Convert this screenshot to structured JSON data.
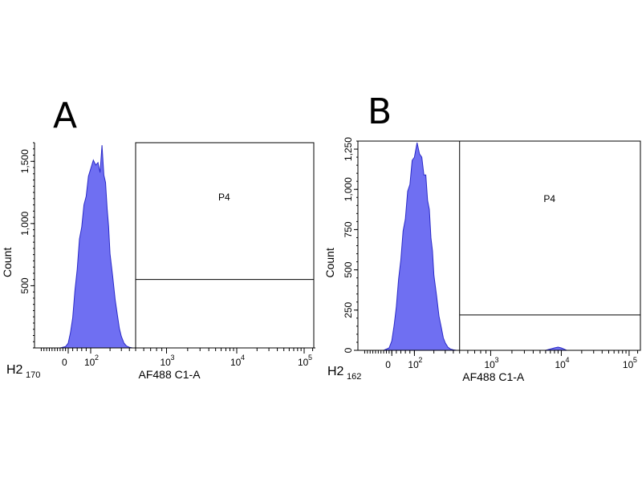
{
  "chart_data": [
    {
      "panel": "A",
      "type": "area",
      "title": "A",
      "xlabel": "AF488 C1-A",
      "ylabel": "Count",
      "sample_prefix": "H2",
      "sample_subscript": "170",
      "x_scale": "biexponential",
      "x_ticks": [
        "0",
        "10",
        "10",
        "10",
        "10"
      ],
      "x_tick_exponents": [
        "",
        "2",
        "3",
        "4",
        "5"
      ],
      "x_tick_values": [
        0,
        100,
        1000,
        10000,
        100000
      ],
      "xlim": [
        -250,
        250000
      ],
      "y_ticks": [
        "500",
        "1,000",
        "1,500"
      ],
      "y_tick_values": [
        500,
        1000,
        1500
      ],
      "ylim": [
        0,
        1650
      ],
      "gate": {
        "label": "P4",
        "x_min": 500,
        "x_max": 250000,
        "y_max_label_region": 1650,
        "lower_line": 550
      },
      "histogram": {
        "x": [
          -60,
          -20,
          0,
          10,
          20,
          30,
          40,
          50,
          60,
          70,
          80,
          90,
          100,
          110,
          120,
          130,
          140,
          150,
          160,
          170,
          180,
          190,
          200,
          220,
          240,
          260,
          280,
          300,
          330,
          360,
          400,
          450
        ],
        "y": [
          0,
          10,
          40,
          120,
          250,
          450,
          650,
          850,
          1000,
          1120,
          1250,
          1350,
          1470,
          1480,
          1500,
          1460,
          1440,
          1600,
          1420,
          1300,
          1150,
          950,
          780,
          560,
          400,
          260,
          160,
          90,
          40,
          15,
          5,
          0
        ]
      }
    },
    {
      "panel": "B",
      "type": "area",
      "title": "B",
      "xlabel": "AF488 C1-A",
      "ylabel": "Count",
      "sample_prefix": "H2",
      "sample_subscript": "162",
      "x_scale": "biexponential",
      "x_ticks": [
        "0",
        "10",
        "10",
        "10",
        "10"
      ],
      "x_tick_exponents": [
        "",
        "2",
        "3",
        "4",
        "5"
      ],
      "x_tick_values": [
        0,
        100,
        1000,
        10000,
        100000
      ],
      "xlim": [
        -250,
        250000
      ],
      "y_ticks": [
        "0",
        "250",
        "500",
        "750",
        "1,000",
        "1,250"
      ],
      "y_tick_values": [
        0,
        250,
        500,
        750,
        1000,
        1250
      ],
      "ylim": [
        0,
        1300
      ],
      "gate": {
        "label": "P4",
        "x_min": 500,
        "x_max": 250000,
        "y_max_label_region": 1300,
        "lower_line": 220
      },
      "histogram": {
        "x": [
          -60,
          -20,
          0,
          10,
          20,
          30,
          40,
          50,
          60,
          70,
          80,
          90,
          100,
          110,
          120,
          130,
          140,
          150,
          160,
          170,
          180,
          190,
          200,
          220,
          240,
          260,
          280,
          300,
          330,
          360,
          400,
          450
        ],
        "y": [
          0,
          15,
          60,
          150,
          280,
          430,
          580,
          720,
          840,
          960,
          1060,
          1150,
          1230,
          1260,
          1250,
          1170,
          1120,
          1060,
          960,
          850,
          720,
          600,
          480,
          330,
          220,
          140,
          80,
          45,
          20,
          8,
          3,
          0
        ]
      },
      "minor_peak": {
        "x": [
          6000,
          7000,
          8000,
          9000,
          10000,
          11000,
          12000
        ],
        "y": [
          0,
          8,
          15,
          20,
          15,
          8,
          0
        ]
      }
    }
  ]
}
